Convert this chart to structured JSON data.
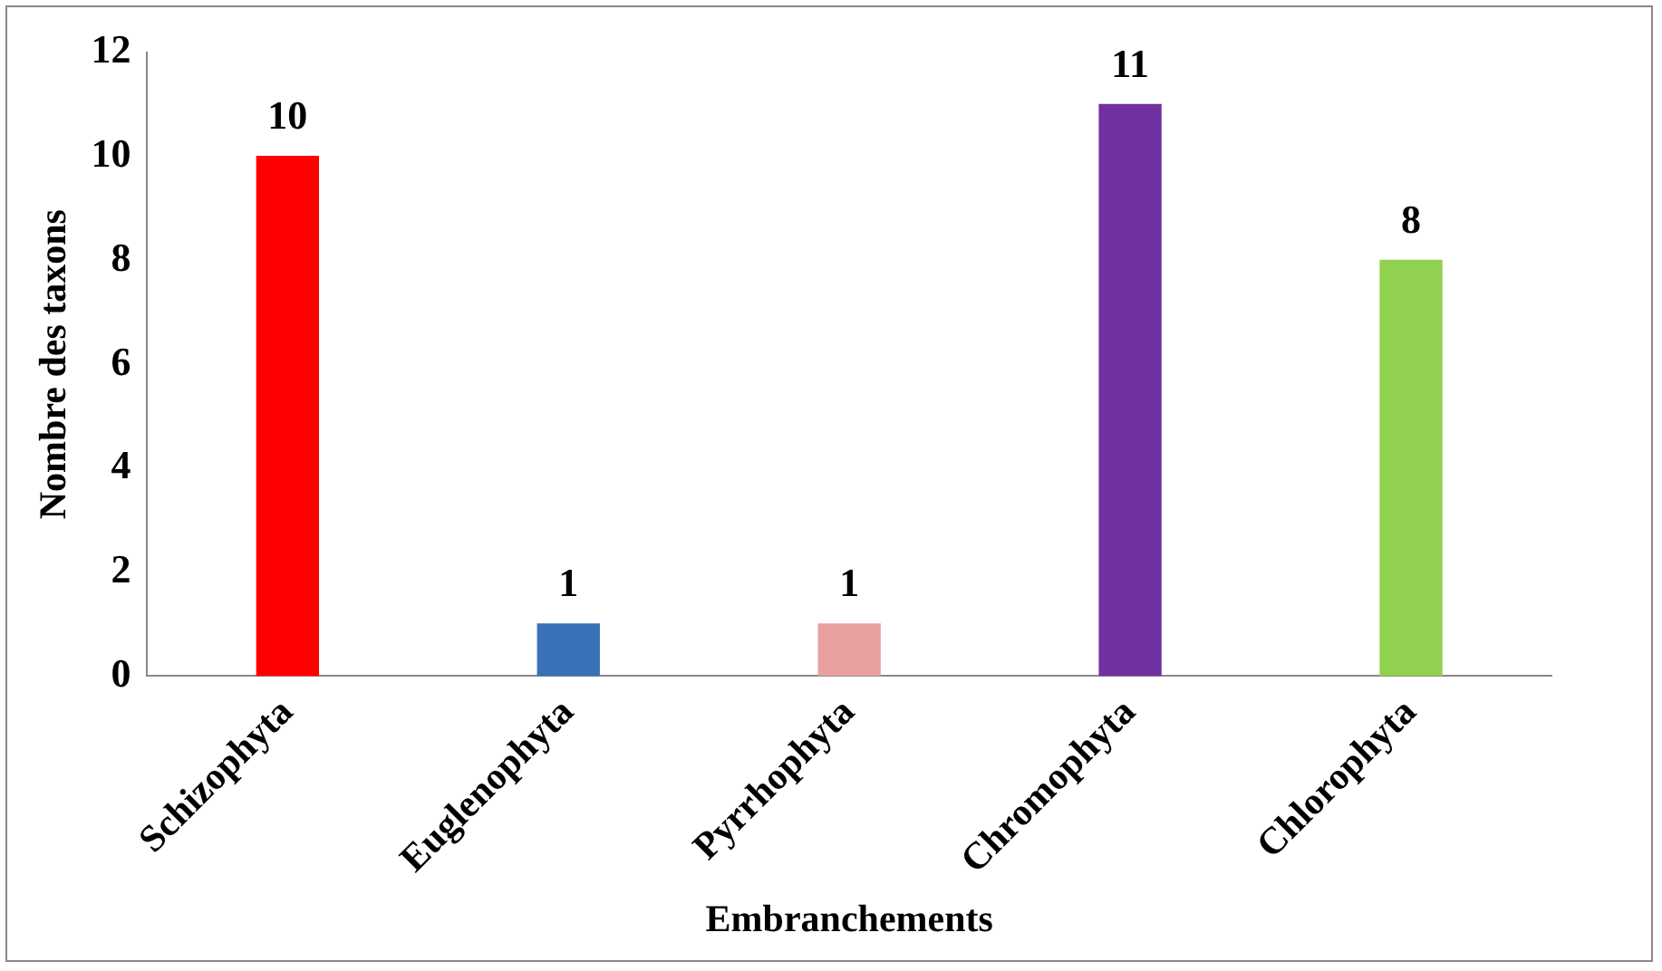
{
  "chart_data": {
    "type": "bar",
    "xlabel": "Embranchements",
    "ylabel": "Nombre des taxons",
    "categories": [
      "Schizophyta",
      "Euglenophyta",
      "Pyrrhophyta",
      "Chromophyta",
      "Chlorophyta"
    ],
    "values": [
      10,
      1,
      1,
      11,
      8
    ],
    "colors": [
      "#ff0000",
      "#3a70b8",
      "#e8a0a0",
      "#7030a0",
      "#92d050"
    ],
    "ylim": [
      0,
      12
    ],
    "yticks": [
      0,
      2,
      4,
      6,
      8,
      10,
      12
    ],
    "grid": false,
    "legend": false,
    "data_labels": true
  }
}
